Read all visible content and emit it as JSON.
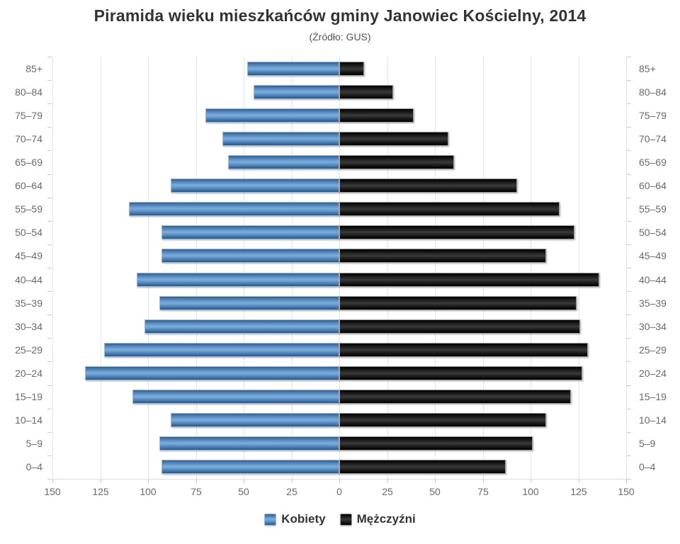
{
  "title": "Piramida wieku mieszkańców gminy Janowiec Kościelny, 2014",
  "subtitle": "(Źródło: GUS)",
  "legend": {
    "kobiety_label": "Kobiety",
    "mezczyzni_label": "Mężczyźni"
  },
  "colors": {
    "women_bar": "#4a7ebb",
    "men_bar": "#1c1c1c",
    "gridline": "#e2e5e8",
    "axis_label": "#666a6e",
    "title_text": "#333333"
  },
  "chart_data": {
    "type": "bar",
    "variant": "population-pyramid",
    "title": "Piramida wieku mieszkańców gminy Janowiec Kościelny, 2014",
    "subtitle": "(Źródło: GUS)",
    "categories": [
      "85+",
      "80–84",
      "75–79",
      "70–74",
      "65–69",
      "60–64",
      "55–59",
      "50–54",
      "45–49",
      "40–44",
      "35–39",
      "30–34",
      "25–29",
      "20–24",
      "15–19",
      "10–14",
      "5–9",
      "0–4"
    ],
    "series": [
      {
        "name": "Kobiety",
        "side": "left",
        "color": "#4a7ebb",
        "values": [
          48,
          45,
          70,
          61,
          58,
          88,
          110,
          93,
          93,
          106,
          94,
          102,
          123,
          133,
          108,
          88,
          94,
          93
        ]
      },
      {
        "name": "Mężczyźni",
        "side": "right",
        "color": "#1c1c1c",
        "values": [
          13,
          28,
          39,
          57,
          60,
          93,
          115,
          123,
          108,
          136,
          124,
          126,
          130,
          127,
          121,
          108,
          101,
          87
        ]
      }
    ],
    "x_axis": {
      "max": 150,
      "tick_interval": 25,
      "ticks": [
        "150",
        "125",
        "100",
        "75",
        "50",
        "25",
        "0",
        "25",
        "50",
        "75",
        "100",
        "125",
        "150"
      ]
    },
    "grid": true,
    "legend_position": "bottom"
  }
}
